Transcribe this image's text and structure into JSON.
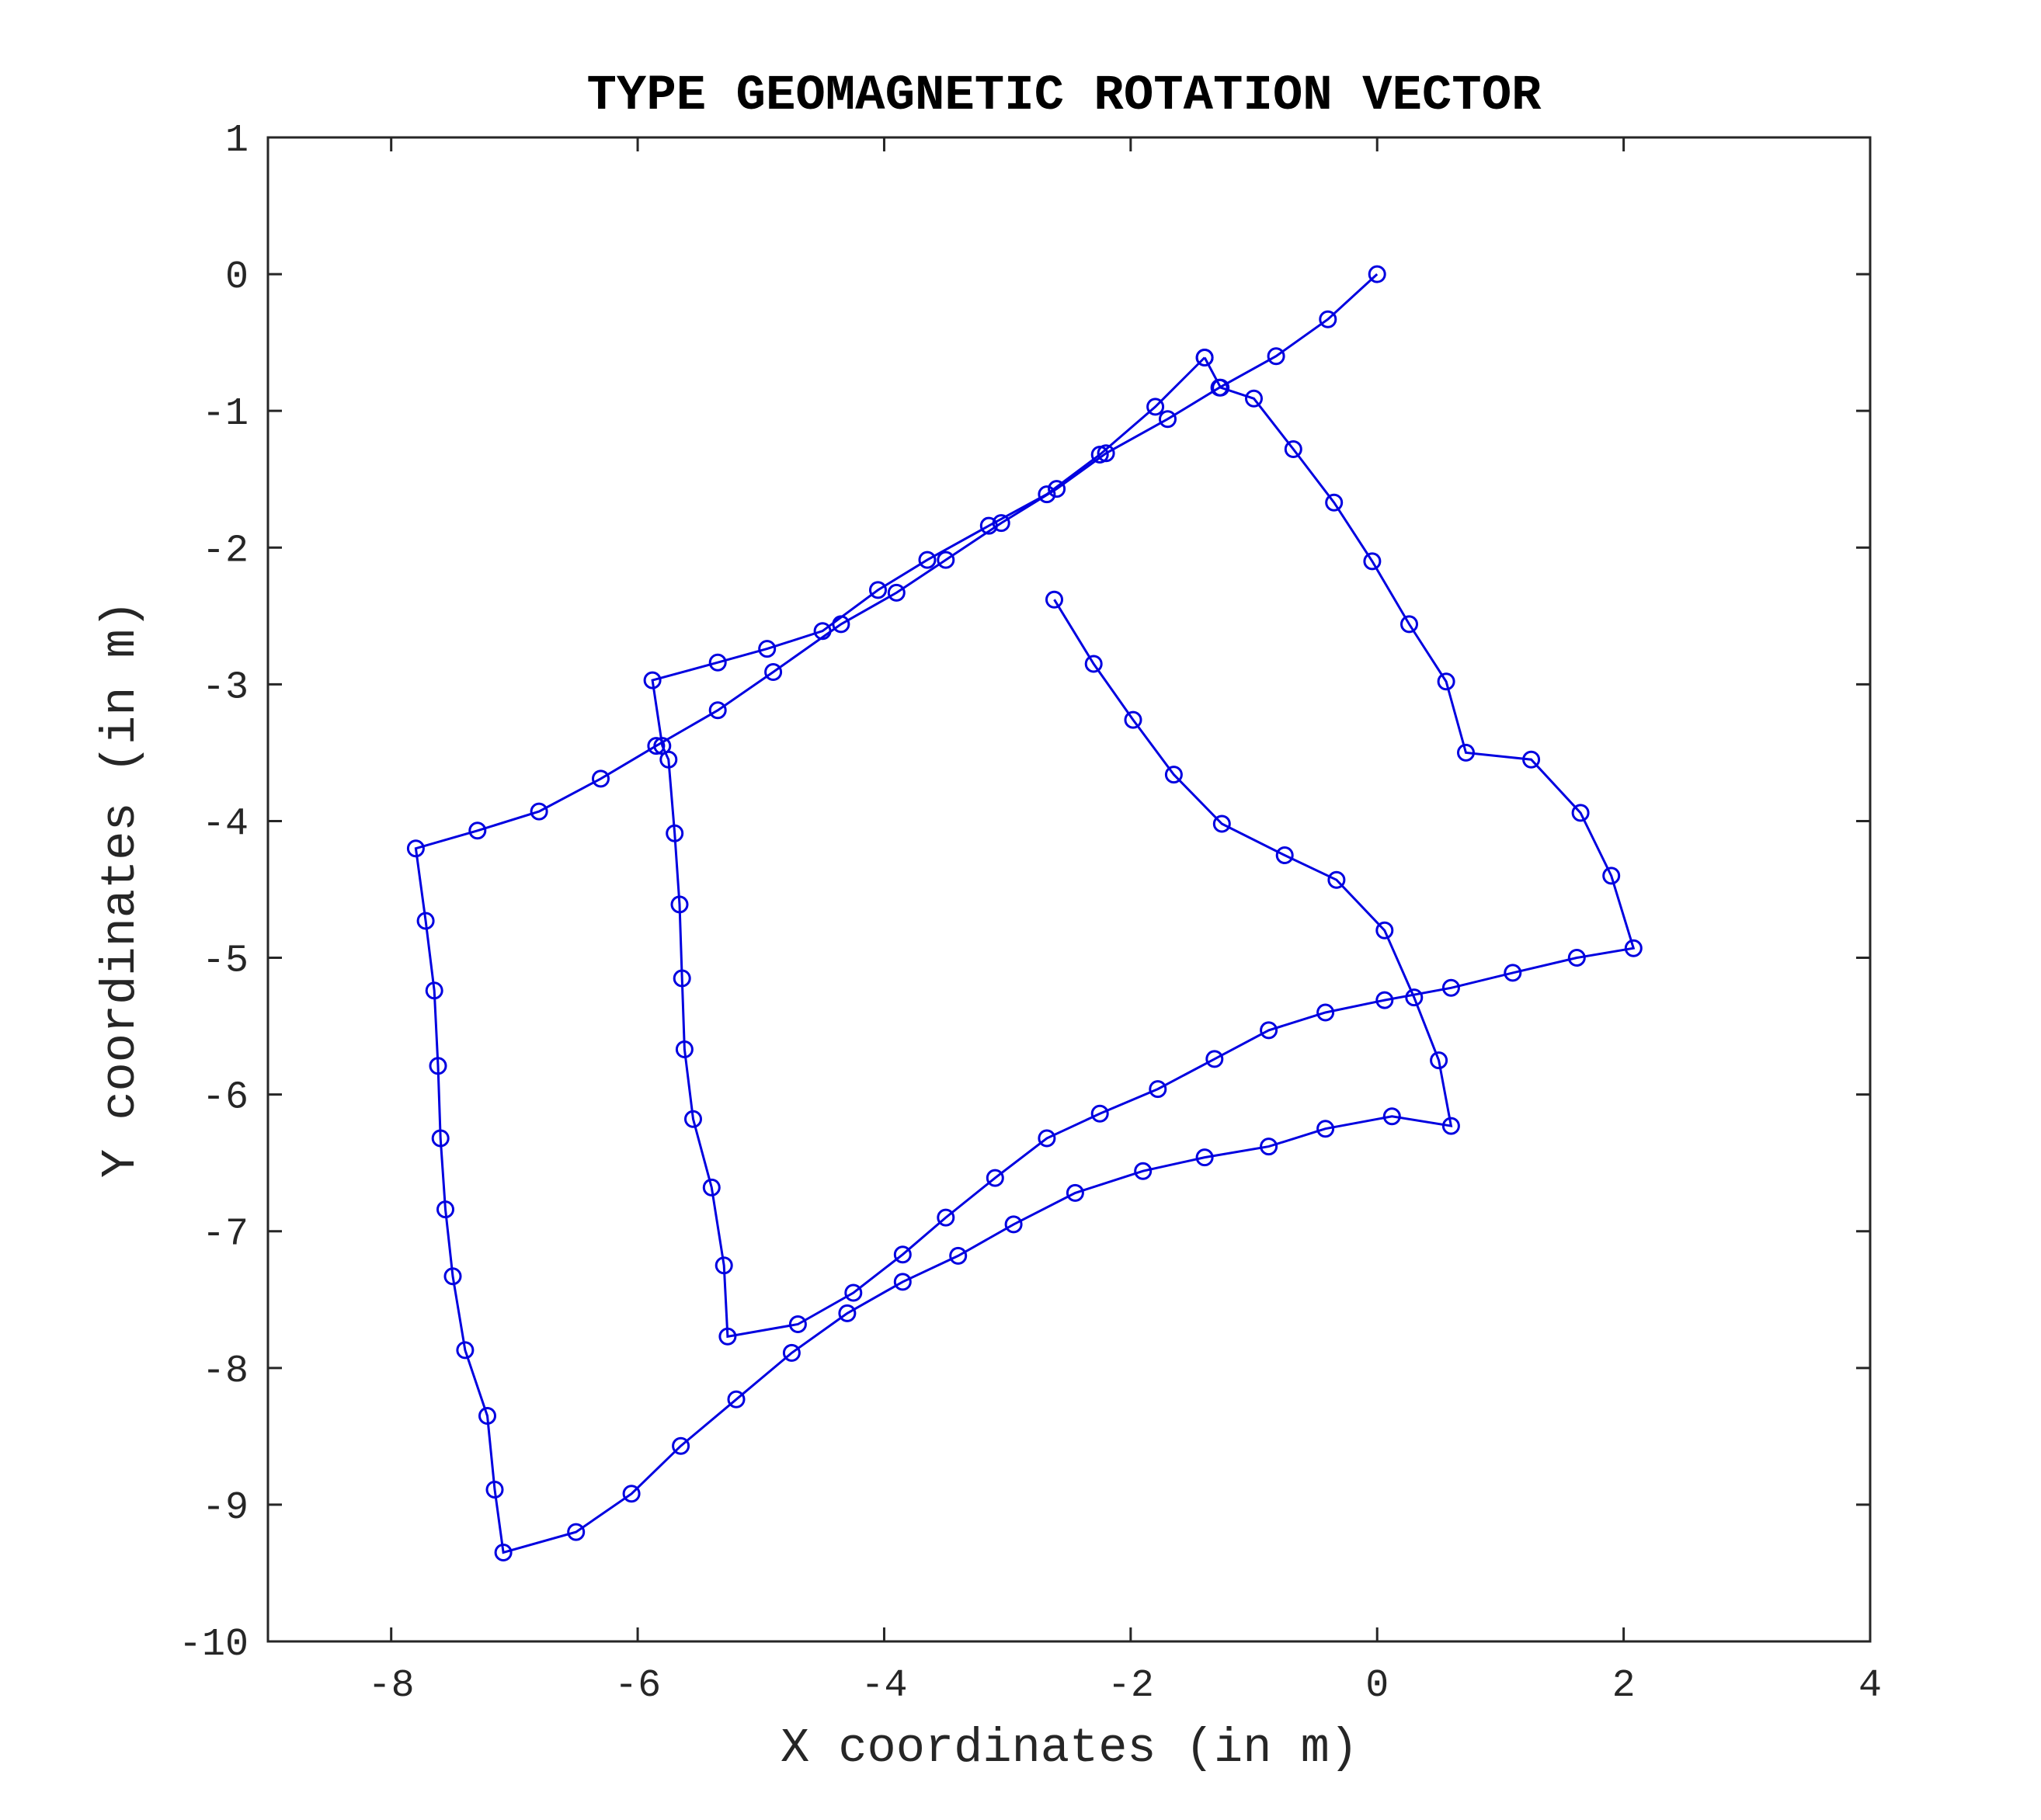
{
  "chart_data": {
    "type": "line",
    "title": "TYPE GEOMAGNETIC ROTATION VECTOR",
    "xlabel": "X coordinates (in m)",
    "ylabel": "Y coordinates (in m)",
    "xlim": [
      -9,
      4
    ],
    "ylim": [
      -10,
      1
    ],
    "xticks": [
      -8,
      -6,
      -4,
      -2,
      0,
      2,
      4
    ],
    "yticks": [
      1,
      0,
      -1,
      -2,
      -3,
      -4,
      -5,
      -6,
      -7,
      -8,
      -9,
      -10
    ],
    "xtick_labels": [
      "-8",
      "-6",
      "-4",
      "-2",
      "0",
      "2",
      "4"
    ],
    "ytick_labels": [
      "1",
      "0",
      "-1",
      "-2",
      "-3",
      "-4",
      "-5",
      "-6",
      "-7",
      "-8",
      "-9",
      "-10"
    ],
    "grid": false,
    "marker": "circle",
    "color": "#0000e0",
    "series": [
      {
        "x": [
          0.0,
          -0.4,
          -0.82,
          -1.28,
          -1.7,
          -2.2,
          -2.6,
          -3.05,
          -3.5,
          -3.9,
          -4.35,
          -4.9,
          -5.35,
          -5.85,
          -6.3,
          -6.8,
          -7.3,
          -7.8,
          -7.72,
          -7.65,
          -7.62,
          -7.6,
          -7.56,
          -7.5,
          -7.4,
          -7.22,
          -7.16,
          -7.09,
          -6.5,
          -6.05,
          -5.65,
          -5.2,
          -4.75,
          -4.3,
          -3.85,
          -3.4,
          -2.95,
          -2.45,
          -1.9,
          -1.4,
          -0.88,
          -0.42,
          0.12,
          0.6,
          0.5,
          0.3,
          0.06,
          -0.33,
          -0.75,
          -1.26,
          -1.65,
          -1.98,
          -2.3,
          -2.62
        ],
        "y": [
          0.0,
          -0.33,
          -0.6,
          -0.83,
          -1.06,
          -1.31,
          -1.57,
          -1.82,
          -2.09,
          -2.33,
          -2.56,
          -2.91,
          -3.19,
          -3.45,
          -3.69,
          -3.93,
          -4.07,
          -4.2,
          -4.73,
          -5.24,
          -5.79,
          -6.32,
          -6.84,
          -7.33,
          -7.87,
          -8.35,
          -8.89,
          -9.35,
          -9.2,
          -8.92,
          -8.57,
          -8.23,
          -7.89,
          -7.6,
          -7.37,
          -7.18,
          -6.95,
          -6.72,
          -6.56,
          -6.46,
          -6.38,
          -6.25,
          -6.16,
          -6.23,
          -5.75,
          -5.29,
          -4.8,
          -4.43,
          -4.25,
          -4.02,
          -3.66,
          -3.26,
          -2.85,
          -2.38
        ]
      },
      {
        "x": [
          -1.4,
          -1.8,
          -2.25,
          -2.68,
          -3.15,
          -3.65,
          -4.05,
          -4.5,
          -4.95,
          -5.35,
          -5.88,
          -5.8,
          -5.75,
          -5.7,
          -5.66,
          -5.64,
          -5.62,
          -5.55,
          -5.4,
          -5.3,
          -5.27,
          -4.7,
          -4.25,
          -3.85,
          -3.5,
          -3.1,
          -2.68,
          -2.25,
          -1.78,
          -1.32,
          -0.88,
          -0.42,
          0.06,
          0.6,
          1.1,
          1.62,
          2.08,
          1.9,
          1.65,
          1.25,
          0.72,
          0.56,
          0.26,
          -0.04,
          -0.35,
          -0.68,
          -1.0,
          -1.27,
          -1.4
        ],
        "y": [
          -0.61,
          -0.97,
          -1.32,
          -1.61,
          -1.84,
          -2.09,
          -2.31,
          -2.61,
          -2.74,
          -2.84,
          -2.97,
          -3.45,
          -3.55,
          -4.09,
          -4.61,
          -5.15,
          -5.67,
          -6.18,
          -6.68,
          -7.25,
          -7.77,
          -7.68,
          -7.45,
          -7.17,
          -6.9,
          -6.61,
          -6.32,
          -6.14,
          -5.96,
          -5.74,
          -5.53,
          -5.4,
          -5.31,
          -5.22,
          -5.11,
          -5.0,
          -4.93,
          -4.4,
          -3.94,
          -3.55,
          -3.5,
          -2.98,
          -2.56,
          -2.1,
          -1.67,
          -1.28,
          -0.91,
          -0.83,
          -0.61
        ]
      }
    ]
  }
}
